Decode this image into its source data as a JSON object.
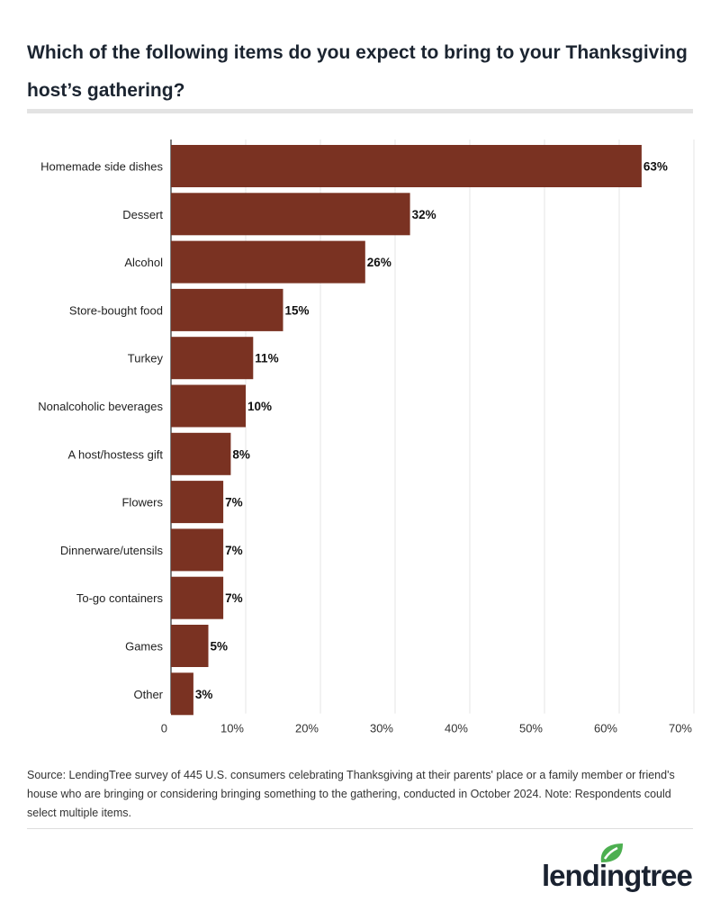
{
  "chart_data": {
    "type": "bar",
    "orientation": "horizontal",
    "title": "Which of the following items do you expect to bring to your Thanksgiving host’s gathering?",
    "categories": [
      "Homemade side dishes",
      "Dessert",
      "Alcohol",
      "Store-bought food",
      "Turkey",
      "Nonalcoholic beverages",
      "A host/hostess gift",
      "Flowers",
      "Dinnerware/utensils",
      "To-go containers",
      "Games",
      "Other"
    ],
    "values": [
      63,
      32,
      26,
      15,
      11,
      10,
      8,
      7,
      7,
      7,
      5,
      3
    ],
    "data_labels": [
      "63%",
      "32%",
      "26%",
      "15%",
      "11%",
      "10%",
      "8%",
      "7%",
      "7%",
      "7%",
      "5%",
      "3%"
    ],
    "xlim": [
      0,
      70
    ],
    "x_ticks": [
      "0",
      "10%",
      "20%",
      "30%",
      "40%",
      "50%",
      "60%",
      "70%"
    ],
    "grid": "vertical",
    "bar_color": "#7a3222",
    "xlabel": "",
    "ylabel": ""
  },
  "source": "Source: LendingTree survey of 445 U.S. consumers celebrating Thanksgiving at their parents' place or a family member or friend's house who are bringing or considering bringing something to the gathering, conducted in October 2024. Note: Respondents could select multiple items.",
  "logo": {
    "text": "lendingtree",
    "leaf_color": "#4caf50"
  }
}
